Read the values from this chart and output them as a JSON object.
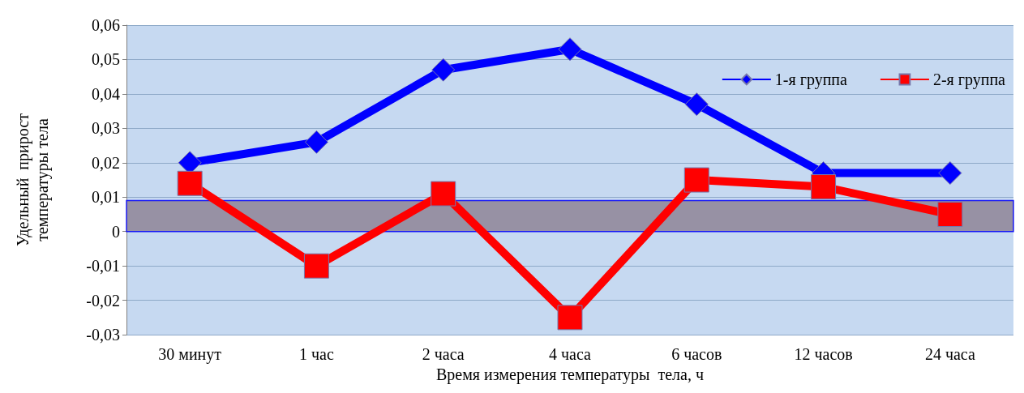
{
  "chart_data": {
    "type": "line",
    "xlabel": "Время измерения температуры  тела, ч",
    "ylabel": "Удельный  прирост\nтемпературы тела",
    "categories": [
      "30 минут",
      "1 час",
      "2 часа",
      "4 часа",
      "6 часов",
      "12 часов",
      "24 часа"
    ],
    "series": [
      {
        "name": "1-я группа",
        "color": "#0000ff",
        "marker": "diamond",
        "values": [
          0.02,
          0.026,
          0.047,
          0.053,
          0.037,
          0.017,
          0.017
        ]
      },
      {
        "name": "2-я группа",
        "color": "#ff0000",
        "marker": "square",
        "values": [
          0.014,
          -0.01,
          0.011,
          -0.025,
          0.015,
          0.013,
          0.005
        ]
      }
    ],
    "ylim": [
      -0.03,
      0.06
    ],
    "yticks": [
      {
        "value": -0.03,
        "label": "-0,03"
      },
      {
        "value": -0.02,
        "label": "-0,02"
      },
      {
        "value": -0.01,
        "label": "-0,01"
      },
      0,
      {
        "value": 0.01,
        "label": "0,01"
      },
      {
        "value": 0.02,
        "label": "0,02"
      },
      {
        "value": 0.03,
        "label": "0,03"
      },
      {
        "value": 0.04,
        "label": "0,04"
      },
      {
        "value": 0.05,
        "label": "0,05"
      },
      {
        "value": 0.06,
        "label": "0,06"
      }
    ],
    "bands": [
      {
        "axis": "y",
        "from": 0,
        "to": 0.009,
        "color": "#8e8496"
      }
    ],
    "grid": "y",
    "legend": "top right"
  }
}
